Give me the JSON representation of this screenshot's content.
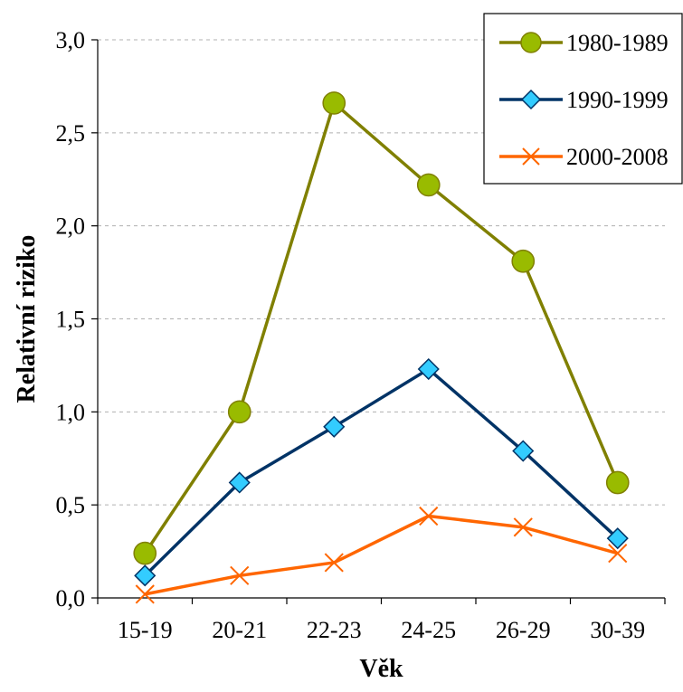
{
  "chart_data": {
    "type": "line",
    "xlabel": "Věk",
    "ylabel": "Relativní riziko",
    "categories": [
      "15-19",
      "20-21",
      "22-23",
      "24-25",
      "26-29",
      "30-39"
    ],
    "ylim": [
      0,
      3.0
    ],
    "yticks": [
      "0,0",
      "0,5",
      "1,0",
      "1,5",
      "2,0",
      "2,5",
      "3,0"
    ],
    "grid": "horizontal dashed",
    "legend_position": "top-right",
    "series": [
      {
        "name": "1980-1989",
        "values": [
          0.24,
          1.0,
          2.66,
          2.22,
          1.81,
          0.62
        ],
        "color": "#808000",
        "fill": "#99bb00",
        "marker": "circle"
      },
      {
        "name": "1990-1999",
        "values": [
          0.12,
          0.62,
          0.92,
          1.23,
          0.79,
          0.32
        ],
        "color": "#003366",
        "fill": "#33ccff",
        "marker": "diamond"
      },
      {
        "name": "2000-2008",
        "values": [
          0.02,
          0.12,
          0.19,
          0.44,
          0.38,
          0.24
        ],
        "color": "#ff6600",
        "fill": "#ff6600",
        "marker": "cross"
      }
    ]
  }
}
